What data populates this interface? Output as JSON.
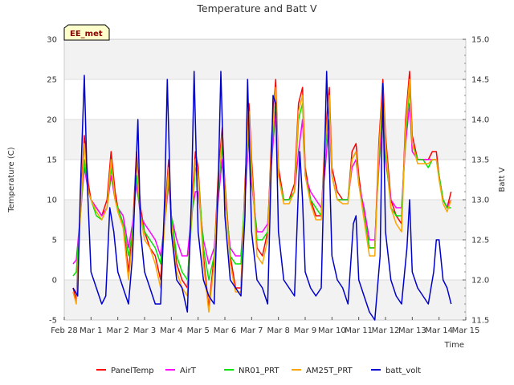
{
  "chart_data": {
    "type": "line",
    "title": "Temperature and Batt V",
    "xlabel": "Time",
    "ylabel_left": "Temperature (C)",
    "ylabel_right": "Batt V",
    "station_label": "EE_met",
    "x_ticks": [
      "Feb 28",
      "Mar 1",
      "Mar 2",
      "Mar 3",
      "Mar 4",
      "Mar 5",
      "Mar 6",
      "Mar 7",
      "Mar 8",
      "Mar 9",
      "Mar 10",
      "Mar 11",
      "Mar 12",
      "Mar 13",
      "Mar 14",
      "Mar 15"
    ],
    "xlim": [
      0,
      15
    ],
    "ylim_left": [
      -5,
      30
    ],
    "ylim_right": [
      11.5,
      15.0
    ],
    "y_left_ticks": [
      "-5",
      "0",
      "5",
      "10",
      "15",
      "20",
      "25",
      "30"
    ],
    "y_right_ticks": [
      "11.5",
      "12.0",
      "12.5",
      "13.0",
      "13.5",
      "14.0",
      "14.5",
      "15.0"
    ],
    "grid": true,
    "background_bands": true,
    "legend_position": "bottom",
    "x_unit": "days since Feb 28",
    "series": [
      {
        "name": "PanelTemp",
        "axis": "left",
        "color": "#ff0000",
        "x": [
          0.33,
          0.45,
          0.6,
          0.75,
          0.9,
          1.0,
          1.2,
          1.4,
          1.6,
          1.75,
          1.9,
          2.0,
          2.2,
          2.4,
          2.55,
          2.7,
          2.85,
          3.0,
          3.2,
          3.4,
          3.6,
          3.75,
          3.9,
          4.0,
          4.2,
          4.4,
          4.6,
          4.75,
          4.9,
          5.0,
          5.2,
          5.4,
          5.6,
          5.75,
          5.9,
          6.0,
          6.2,
          6.4,
          6.6,
          6.75,
          6.9,
          7.0,
          7.2,
          7.4,
          7.6,
          7.75,
          7.9,
          8.0,
          8.2,
          8.4,
          8.6,
          8.75,
          8.9,
          9.0,
          9.2,
          9.4,
          9.6,
          9.75,
          9.9,
          10.0,
          10.2,
          10.4,
          10.6,
          10.75,
          10.9,
          11.0,
          11.2,
          11.4,
          11.6,
          11.75,
          11.9,
          12.0,
          12.2,
          12.4,
          12.6,
          12.75,
          12.9,
          13.0,
          13.2,
          13.4,
          13.6,
          13.75,
          13.9,
          14.0,
          14.15,
          14.3,
          14.45
        ],
        "y": [
          -1,
          -2.5,
          9,
          18,
          12,
          10,
          9,
          8,
          10,
          16,
          11,
          9,
          7,
          1,
          6,
          16,
          9,
          6,
          4,
          3,
          0,
          8,
          15,
          8,
          2,
          0,
          -1,
          9,
          16,
          14,
          3,
          -3.5,
          3,
          13,
          19,
          12,
          3,
          -1,
          -1,
          12,
          22,
          15,
          4,
          3,
          6,
          18,
          25,
          14,
          10,
          10,
          12,
          22,
          24,
          14,
          10,
          8,
          8,
          18,
          24,
          14,
          11,
          10,
          10,
          16,
          17,
          13,
          8,
          4,
          4,
          17,
          25,
          18,
          10,
          8,
          7,
          20,
          26,
          18,
          15,
          15,
          15,
          16,
          16,
          13,
          10,
          9,
          11
        ]
      },
      {
        "name": "AirT",
        "axis": "left",
        "color": "#ff00ff",
        "x": [
          0.33,
          0.45,
          0.6,
          0.75,
          0.9,
          1.0,
          1.2,
          1.4,
          1.6,
          1.75,
          1.9,
          2.0,
          2.2,
          2.4,
          2.55,
          2.7,
          2.85,
          3.0,
          3.2,
          3.4,
          3.6,
          3.75,
          3.9,
          4.0,
          4.2,
          4.4,
          4.6,
          4.75,
          4.9,
          5.0,
          5.2,
          5.4,
          5.6,
          5.75,
          5.9,
          6.0,
          6.2,
          6.4,
          6.6,
          6.75,
          6.9,
          7.0,
          7.2,
          7.4,
          7.6,
          7.75,
          7.9,
          8.0,
          8.2,
          8.4,
          8.6,
          8.75,
          8.9,
          9.0,
          9.2,
          9.4,
          9.6,
          9.75,
          9.9,
          10.0,
          10.2,
          10.4,
          10.6,
          10.75,
          10.9,
          11.0,
          11.2,
          11.4,
          11.6,
          11.75,
          11.9,
          12.0,
          12.2,
          12.4,
          12.6,
          12.75,
          12.9,
          13.0,
          13.2,
          13.4,
          13.6,
          13.75,
          13.9,
          14.0,
          14.15,
          14.3,
          14.45
        ],
        "y": [
          2,
          2.5,
          8,
          14,
          11,
          10,
          9,
          8,
          9,
          13,
          10,
          9,
          8,
          4,
          7,
          12,
          8,
          7,
          6,
          5,
          3,
          7,
          12,
          8,
          5,
          3,
          3,
          8,
          11,
          11,
          5,
          2,
          4,
          10,
          15,
          10,
          4,
          3,
          3,
          10,
          18,
          12,
          6,
          6,
          7,
          15,
          21,
          13,
          10,
          10,
          11,
          16,
          20,
          13,
          11,
          10,
          9,
          14,
          20,
          13,
          10,
          10,
          10,
          14,
          15,
          12,
          9,
          5,
          5,
          14,
          20,
          15,
          10,
          9,
          9,
          17,
          22,
          16,
          15,
          15,
          15,
          15,
          15,
          13,
          10,
          9,
          10
        ]
      },
      {
        "name": "NR01_PRT",
        "axis": "left",
        "color": "#00e600",
        "x": [
          0.33,
          0.45,
          0.6,
          0.75,
          0.9,
          1.0,
          1.2,
          1.4,
          1.6,
          1.75,
          1.9,
          2.0,
          2.2,
          2.4,
          2.55,
          2.7,
          2.85,
          3.0,
          3.2,
          3.4,
          3.6,
          3.75,
          3.9,
          4.0,
          4.2,
          4.4,
          4.6,
          4.75,
          4.9,
          5.0,
          5.2,
          5.4,
          5.6,
          5.75,
          5.9,
          6.0,
          6.2,
          6.4,
          6.6,
          6.75,
          6.9,
          7.0,
          7.2,
          7.4,
          7.6,
          7.75,
          7.9,
          8.0,
          8.2,
          8.4,
          8.6,
          8.75,
          8.9,
          9.0,
          9.2,
          9.4,
          9.6,
          9.75,
          9.9,
          10.0,
          10.2,
          10.4,
          10.6,
          10.75,
          10.9,
          11.0,
          11.2,
          11.4,
          11.6,
          11.75,
          11.9,
          12.0,
          12.2,
          12.4,
          12.6,
          12.75,
          12.9,
          13.0,
          13.2,
          13.4,
          13.6,
          13.75,
          13.9,
          14.0,
          14.15,
          14.3,
          14.45
        ],
        "y": [
          0.5,
          1,
          8,
          15,
          11,
          10,
          8,
          7.5,
          9,
          14,
          10,
          9,
          7,
          3,
          6,
          13,
          8,
          6,
          5,
          4,
          2,
          7,
          13,
          8,
          3,
          1,
          0,
          7,
          14,
          13,
          4,
          0,
          3,
          11,
          17,
          11,
          3,
          2,
          2,
          11,
          20,
          13,
          5,
          5,
          6,
          16,
          23,
          13,
          10,
          10,
          11,
          20,
          22,
          13,
          10,
          9,
          8,
          16,
          22,
          13,
          10,
          10,
          10,
          15,
          16,
          12,
          8,
          4,
          4,
          15,
          23,
          16,
          9,
          8,
          8,
          18,
          24,
          17,
          15,
          15,
          14,
          15,
          15,
          13,
          10,
          9,
          9
        ]
      },
      {
        "name": "AM25T_PRT",
        "axis": "left",
        "color": "#ffa500",
        "x": [
          0.33,
          0.45,
          0.6,
          0.75,
          0.9,
          1.0,
          1.2,
          1.4,
          1.6,
          1.75,
          1.9,
          2.0,
          2.2,
          2.4,
          2.55,
          2.7,
          2.85,
          3.0,
          3.2,
          3.4,
          3.6,
          3.75,
          3.9,
          4.0,
          4.2,
          4.4,
          4.6,
          4.75,
          4.9,
          5.0,
          5.2,
          5.4,
          5.6,
          5.75,
          5.9,
          6.0,
          6.2,
          6.4,
          6.6,
          6.75,
          6.9,
          7.0,
          7.2,
          7.4,
          7.6,
          7.75,
          7.9,
          8.0,
          8.2,
          8.4,
          8.6,
          8.75,
          8.9,
          9.0,
          9.2,
          9.4,
          9.6,
          9.75,
          9.9,
          10.0,
          10.2,
          10.4,
          10.6,
          10.75,
          10.9,
          11.0,
          11.2,
          11.4,
          11.6,
          11.75,
          11.9,
          12.0,
          12.2,
          12.4,
          12.6,
          12.75,
          12.9,
          13.0,
          13.2,
          13.4,
          13.6,
          13.75,
          13.9,
          14.0,
          14.15,
          14.3,
          14.45
        ],
        "y": [
          -1.5,
          -3,
          8,
          17,
          11,
          10,
          8.5,
          7.5,
          9,
          15,
          10,
          8.5,
          6.5,
          0,
          5,
          15,
          8,
          5,
          4,
          2,
          -1,
          7,
          14,
          7,
          1,
          -1,
          -2,
          8,
          15,
          13,
          2,
          -4,
          2,
          12,
          18,
          11,
          2,
          -1.5,
          -1.5,
          11,
          21,
          14,
          3,
          2,
          5,
          17,
          24,
          13,
          9.5,
          9.5,
          11,
          21,
          23,
          13,
          9.5,
          7.5,
          7.5,
          17,
          23,
          13,
          10,
          9.5,
          9.5,
          15,
          16,
          12,
          7.5,
          3,
          3,
          16,
          24,
          17,
          9,
          7,
          6,
          19,
          25,
          17,
          14.5,
          14.5,
          14.5,
          15,
          15,
          12.5,
          9.5,
          8.5,
          10
        ]
      },
      {
        "name": "batt_volt",
        "axis": "right",
        "color": "#0000cc",
        "x": [
          0.33,
          0.5,
          0.6,
          0.75,
          0.85,
          1.0,
          1.2,
          1.4,
          1.55,
          1.7,
          1.85,
          2.0,
          2.2,
          2.4,
          2.55,
          2.75,
          2.85,
          3.0,
          3.2,
          3.4,
          3.6,
          3.75,
          3.85,
          4.0,
          4.2,
          4.4,
          4.6,
          4.75,
          4.85,
          5.0,
          5.2,
          5.4,
          5.6,
          5.75,
          5.85,
          6.0,
          6.2,
          6.4,
          6.6,
          6.75,
          6.85,
          7.0,
          7.2,
          7.4,
          7.6,
          7.8,
          7.9,
          8.0,
          8.2,
          8.4,
          8.6,
          8.8,
          8.9,
          9.0,
          9.2,
          9.4,
          9.6,
          9.8,
          9.9,
          10.0,
          10.2,
          10.4,
          10.6,
          10.8,
          10.9,
          11.0,
          11.2,
          11.4,
          11.6,
          11.8,
          11.9,
          12.0,
          12.2,
          12.4,
          12.6,
          12.8,
          12.9,
          13.0,
          13.2,
          13.4,
          13.6,
          13.8,
          13.9,
          14.0,
          14.15,
          14.3,
          14.45
        ],
        "y": [
          11.9,
          11.8,
          13.1,
          14.55,
          13.3,
          12.1,
          11.9,
          11.7,
          11.8,
          12.9,
          12.6,
          12.1,
          11.9,
          11.7,
          12.3,
          14.0,
          12.6,
          12.1,
          11.9,
          11.7,
          11.7,
          13.0,
          14.5,
          12.6,
          12.0,
          11.9,
          11.6,
          13.0,
          14.6,
          12.6,
          12.0,
          11.8,
          11.7,
          13.2,
          14.6,
          12.8,
          12.0,
          11.9,
          11.8,
          12.8,
          14.5,
          12.6,
          12.0,
          11.9,
          11.7,
          14.3,
          14.2,
          12.6,
          12.0,
          11.9,
          11.8,
          13.6,
          13.0,
          12.1,
          11.9,
          11.8,
          11.9,
          14.6,
          13.5,
          12.3,
          12.0,
          11.9,
          11.7,
          12.7,
          12.8,
          12.0,
          11.8,
          11.6,
          11.5,
          12.3,
          14.45,
          12.6,
          12.0,
          11.8,
          11.7,
          12.4,
          13.0,
          12.1,
          11.9,
          11.8,
          11.7,
          12.1,
          12.5,
          12.5,
          12.0,
          11.9,
          11.7
        ]
      }
    ]
  }
}
